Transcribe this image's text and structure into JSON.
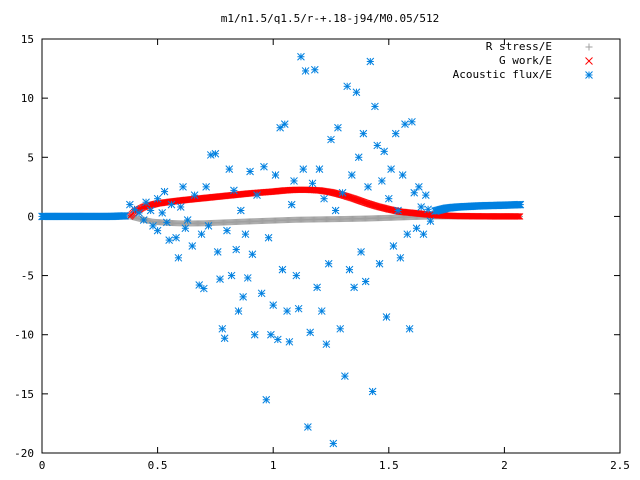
{
  "chart_data": {
    "type": "scatter",
    "title": "m1/n1.5/q1.5/r-+.18-j94/M0.05/512",
    "xlim": [
      0,
      2.5
    ],
    "ylim": [
      -20,
      15
    ],
    "xticks": [
      {
        "v": 0,
        "label": "0"
      },
      {
        "v": 0.5,
        "label": "0.5"
      },
      {
        "v": 1,
        "label": "1"
      },
      {
        "v": 1.5,
        "label": "1.5"
      },
      {
        "v": 2,
        "label": "2"
      },
      {
        "v": 2.5,
        "label": "2.5"
      }
    ],
    "yticks": [
      {
        "v": 15,
        "label": "15"
      },
      {
        "v": 10,
        "label": "10"
      },
      {
        "v": 5,
        "label": "5"
      },
      {
        "v": 0,
        "label": "0"
      },
      {
        "v": -5,
        "label": "-5"
      },
      {
        "v": -10,
        "label": "-10"
      },
      {
        "v": -15,
        "label": "-15"
      },
      {
        "v": -20,
        "label": "-20"
      }
    ],
    "legend_position": "top-right",
    "grid": false,
    "series": [
      {
        "name": "R stress/E",
        "marker": "plus",
        "color": "#a0a0a0",
        "segments": [
          [
            0.38,
            0.0
          ],
          [
            0.42,
            -0.2
          ],
          [
            0.48,
            -0.45
          ],
          [
            0.55,
            -0.55
          ],
          [
            0.62,
            -0.6
          ],
          [
            0.7,
            -0.58
          ],
          [
            0.8,
            -0.5
          ],
          [
            0.9,
            -0.42
          ],
          [
            1.0,
            -0.35
          ],
          [
            1.1,
            -0.28
          ],
          [
            1.2,
            -0.25
          ],
          [
            1.3,
            -0.22
          ],
          [
            1.4,
            -0.18
          ],
          [
            1.5,
            -0.12
          ],
          [
            1.6,
            -0.05
          ],
          [
            1.7,
            0.0
          ],
          [
            1.8,
            0.0
          ],
          [
            1.9,
            0.0
          ],
          [
            2.07,
            0.0
          ]
        ]
      },
      {
        "name": "G work/E",
        "marker": "cross",
        "color": "#ff0000",
        "segments": [
          [
            0.38,
            0.0
          ],
          [
            0.4,
            0.4
          ],
          [
            0.44,
            0.8
          ],
          [
            0.5,
            1.1
          ],
          [
            0.6,
            1.35
          ],
          [
            0.7,
            1.55
          ],
          [
            0.8,
            1.75
          ],
          [
            0.9,
            1.95
          ],
          [
            1.0,
            2.1
          ],
          [
            1.05,
            2.2
          ],
          [
            1.1,
            2.25
          ],
          [
            1.15,
            2.25
          ],
          [
            1.2,
            2.2
          ],
          [
            1.25,
            2.05
          ],
          [
            1.3,
            1.8
          ],
          [
            1.35,
            1.5
          ],
          [
            1.4,
            1.15
          ],
          [
            1.45,
            0.85
          ],
          [
            1.5,
            0.6
          ],
          [
            1.55,
            0.4
          ],
          [
            1.6,
            0.3
          ],
          [
            1.65,
            0.2
          ],
          [
            1.7,
            0.1
          ],
          [
            1.8,
            0.03
          ],
          [
            1.9,
            0.01
          ],
          [
            2.07,
            0.0
          ]
        ]
      },
      {
        "name": "Acoustic flux/E",
        "marker": "star",
        "color": "#0080e0",
        "segments": [
          [
            0.0,
            0.0
          ],
          [
            0.1,
            0.0
          ],
          [
            0.2,
            0.0
          ],
          [
            0.3,
            0.0
          ],
          [
            0.36,
            0.05
          ],
          [
            1.7,
            0.45
          ],
          [
            1.75,
            0.7
          ],
          [
            1.8,
            0.8
          ],
          [
            1.9,
            0.9
          ],
          [
            2.0,
            0.95
          ],
          [
            2.07,
            1.0
          ]
        ],
        "scatter_points": [
          [
            0.38,
            1.0
          ],
          [
            0.4,
            0.6
          ],
          [
            0.42,
            0.3
          ],
          [
            0.44,
            -0.3
          ],
          [
            0.45,
            1.2
          ],
          [
            0.47,
            0.5
          ],
          [
            0.48,
            -0.8
          ],
          [
            0.5,
            1.5
          ],
          [
            0.5,
            -1.2
          ],
          [
            0.52,
            0.3
          ],
          [
            0.53,
            2.1
          ],
          [
            0.54,
            -0.5
          ],
          [
            0.55,
            -2.0
          ],
          [
            0.56,
            1.0
          ],
          [
            0.58,
            -1.8
          ],
          [
            0.59,
            -3.5
          ],
          [
            0.6,
            0.8
          ],
          [
            0.61,
            2.5
          ],
          [
            0.62,
            -1.0
          ],
          [
            0.63,
            -0.3
          ],
          [
            0.65,
            -2.5
          ],
          [
            0.66,
            1.8
          ],
          [
            0.68,
            -5.8
          ],
          [
            0.69,
            -1.5
          ],
          [
            0.7,
            -6.1
          ],
          [
            0.71,
            2.5
          ],
          [
            0.72,
            -0.8
          ],
          [
            0.73,
            5.2
          ],
          [
            0.75,
            5.3
          ],
          [
            0.76,
            -3.0
          ],
          [
            0.77,
            -5.3
          ],
          [
            0.78,
            -9.5
          ],
          [
            0.79,
            -10.3
          ],
          [
            0.8,
            -1.2
          ],
          [
            0.81,
            4.0
          ],
          [
            0.82,
            -5.0
          ],
          [
            0.83,
            2.2
          ],
          [
            0.84,
            -2.8
          ],
          [
            0.85,
            -8.0
          ],
          [
            0.86,
            0.5
          ],
          [
            0.87,
            -6.8
          ],
          [
            0.88,
            -1.5
          ],
          [
            0.89,
            -5.2
          ],
          [
            0.9,
            3.8
          ],
          [
            0.91,
            -3.2
          ],
          [
            0.92,
            -10.0
          ],
          [
            0.93,
            1.8
          ],
          [
            0.95,
            -6.5
          ],
          [
            0.96,
            4.2
          ],
          [
            0.97,
            -15.5
          ],
          [
            0.98,
            -1.8
          ],
          [
            0.99,
            -10.0
          ],
          [
            1.0,
            -7.5
          ],
          [
            1.01,
            3.5
          ],
          [
            1.02,
            -10.4
          ],
          [
            1.03,
            7.5
          ],
          [
            1.04,
            -4.5
          ],
          [
            1.05,
            7.8
          ],
          [
            1.06,
            -8.0
          ],
          [
            1.07,
            -10.6
          ],
          [
            1.08,
            1.0
          ],
          [
            1.09,
            3.0
          ],
          [
            1.1,
            -5.0
          ],
          [
            1.11,
            -7.8
          ],
          [
            1.12,
            13.5
          ],
          [
            1.13,
            4.0
          ],
          [
            1.14,
            12.3
          ],
          [
            1.15,
            -17.8
          ],
          [
            1.16,
            -9.8
          ],
          [
            1.17,
            2.8
          ],
          [
            1.18,
            12.4
          ],
          [
            1.19,
            -6.0
          ],
          [
            1.2,
            4.0
          ],
          [
            1.21,
            -8.0
          ],
          [
            1.22,
            1.5
          ],
          [
            1.23,
            -10.8
          ],
          [
            1.24,
            -4.0
          ],
          [
            1.25,
            6.5
          ],
          [
            1.26,
            -19.2
          ],
          [
            1.27,
            0.5
          ],
          [
            1.28,
            7.5
          ],
          [
            1.29,
            -9.5
          ],
          [
            1.3,
            2.0
          ],
          [
            1.31,
            -13.5
          ],
          [
            1.32,
            11.0
          ],
          [
            1.33,
            -4.5
          ],
          [
            1.34,
            3.5
          ],
          [
            1.35,
            -6.0
          ],
          [
            1.36,
            10.5
          ],
          [
            1.37,
            5.0
          ],
          [
            1.38,
            -3.0
          ],
          [
            1.39,
            7.0
          ],
          [
            1.4,
            -5.5
          ],
          [
            1.41,
            2.5
          ],
          [
            1.42,
            13.1
          ],
          [
            1.43,
            -14.8
          ],
          [
            1.44,
            9.3
          ],
          [
            1.45,
            6.0
          ],
          [
            1.46,
            -4.0
          ],
          [
            1.47,
            3.0
          ],
          [
            1.48,
            5.5
          ],
          [
            1.49,
            -8.5
          ],
          [
            1.5,
            1.5
          ],
          [
            1.51,
            4.0
          ],
          [
            1.52,
            -2.5
          ],
          [
            1.53,
            7.0
          ],
          [
            1.54,
            0.5
          ],
          [
            1.55,
            -3.5
          ],
          [
            1.56,
            3.5
          ],
          [
            1.57,
            7.8
          ],
          [
            1.58,
            -1.5
          ],
          [
            1.59,
            -9.5
          ],
          [
            1.6,
            8.0
          ],
          [
            1.61,
            2.0
          ],
          [
            1.62,
            -1.0
          ],
          [
            1.63,
            2.5
          ],
          [
            1.64,
            0.8
          ],
          [
            1.65,
            -1.5
          ],
          [
            1.66,
            1.8
          ],
          [
            1.67,
            0.6
          ],
          [
            1.68,
            -0.4
          ]
        ]
      }
    ]
  }
}
